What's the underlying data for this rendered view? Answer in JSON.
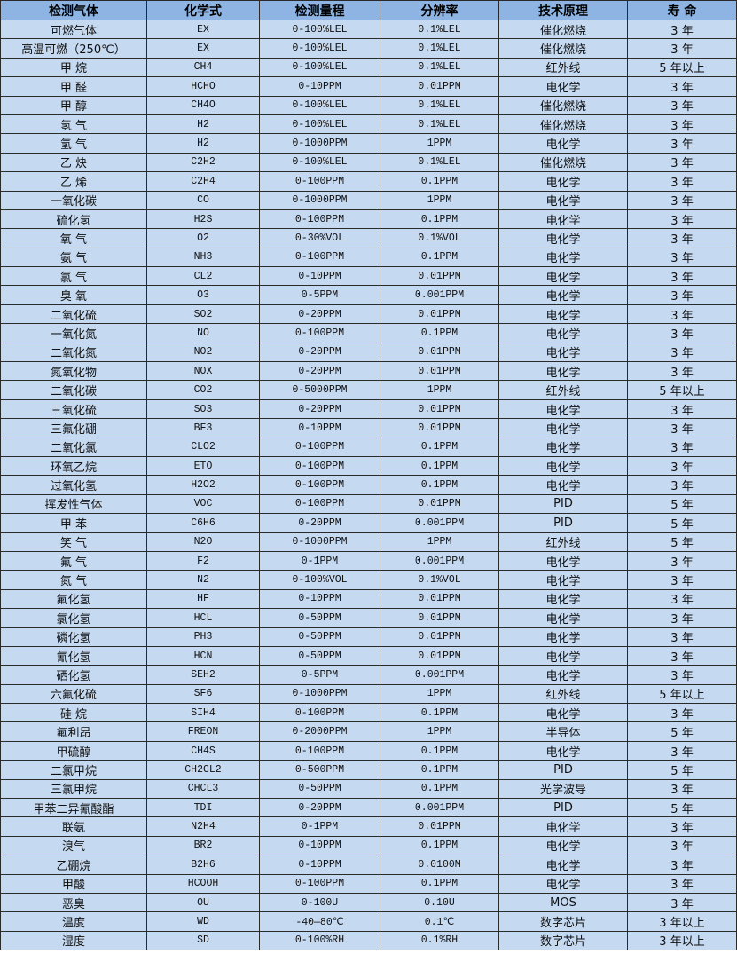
{
  "headers": [
    "检测气体",
    "化学式",
    "检测量程",
    "分辨率",
    "技术原理",
    "寿 命"
  ],
  "rows": [
    [
      "可燃气体",
      "EX",
      "0-100%LEL",
      "0.1%LEL",
      "催化燃烧",
      "3 年"
    ],
    [
      "高温可燃（250℃）",
      "EX",
      "0-100%LEL",
      "0.1%LEL",
      "催化燃烧",
      "3 年"
    ],
    [
      "甲 烷",
      "CH4",
      "0-100%LEL",
      "0.1%LEL",
      "红外线",
      "5 年以上"
    ],
    [
      "甲 醛",
      "HCHO",
      "0-10PPM",
      "0.01PPM",
      "电化学",
      "3 年"
    ],
    [
      "甲 醇",
      "CH4O",
      "0-100%LEL",
      "0.1%LEL",
      "催化燃烧",
      "3 年"
    ],
    [
      "氢 气",
      "H2",
      "0-100%LEL",
      "0.1%LEL",
      "催化燃烧",
      "3 年"
    ],
    [
      "氢 气",
      "H2",
      "0-1000PPM",
      "1PPM",
      "电化学",
      "3 年"
    ],
    [
      "乙 炔",
      "C2H2",
      "0-100%LEL",
      "0.1%LEL",
      "催化燃烧",
      "3 年"
    ],
    [
      "乙 烯",
      "C2H4",
      "0-100PPM",
      "0.1PPM",
      "电化学",
      "3 年"
    ],
    [
      "一氧化碳",
      "CO",
      "0-1000PPM",
      "1PPM",
      "电化学",
      "3 年"
    ],
    [
      "硫化氢",
      "H2S",
      "0-100PPM",
      "0.1PPM",
      "电化学",
      "3 年"
    ],
    [
      "氧 气",
      "O2",
      "0-30%VOL",
      "0.1%VOL",
      "电化学",
      "3 年"
    ],
    [
      "氨 气",
      "NH3",
      "0-100PPM",
      "0.1PPM",
      "电化学",
      "3 年"
    ],
    [
      "氯 气",
      "CL2",
      "0-10PPM",
      "0.01PPM",
      "电化学",
      "3 年"
    ],
    [
      "臭 氧",
      "O3",
      "0-5PPM",
      "0.001PPM",
      "电化学",
      "3 年"
    ],
    [
      "二氧化硫",
      "SO2",
      "0-20PPM",
      "0.01PPM",
      "电化学",
      "3 年"
    ],
    [
      "一氧化氮",
      "NO",
      "0-100PPM",
      "0.1PPM",
      "电化学",
      "3 年"
    ],
    [
      "二氧化氮",
      "NO2",
      "0-20PPM",
      "0.01PPM",
      "电化学",
      "3 年"
    ],
    [
      "氮氧化物",
      "NOX",
      "0-20PPM",
      "0.01PPM",
      "电化学",
      "3 年"
    ],
    [
      "二氧化碳",
      "CO2",
      "0-5000PPM",
      "1PPM",
      "红外线",
      "5 年以上"
    ],
    [
      "三氧化硫",
      "SO3",
      "0-20PPM",
      "0.01PPM",
      "电化学",
      "3 年"
    ],
    [
      "三氟化硼",
      "BF3",
      "0-10PPM",
      "0.01PPM",
      "电化学",
      "3 年"
    ],
    [
      "二氧化氯",
      "CLO2",
      "0-100PPM",
      "0.1PPM",
      "电化学",
      "3 年"
    ],
    [
      "环氧乙烷",
      "ETO",
      "0-100PPM",
      "0.1PPM",
      "电化学",
      "3 年"
    ],
    [
      "过氧化氢",
      "H2O2",
      "0-100PPM",
      "0.1PPM",
      "电化学",
      "3 年"
    ],
    [
      "挥发性气体",
      "VOC",
      "0-100PPM",
      "0.01PPM",
      "PID",
      "5 年"
    ],
    [
      "甲 苯",
      "C6H6",
      "0-20PPM",
      "0.001PPM",
      "PID",
      "5 年"
    ],
    [
      "笑 气",
      "N2O",
      "0-1000PPM",
      "1PPM",
      "红外线",
      "5 年"
    ],
    [
      "氟 气",
      "F2",
      "0-1PPM",
      "0.001PPM",
      "电化学",
      "3 年"
    ],
    [
      "氮 气",
      "N2",
      "0-100%VOL",
      "0.1%VOL",
      "电化学",
      "3 年"
    ],
    [
      "氟化氢",
      "HF",
      "0-10PPM",
      "0.01PPM",
      "电化学",
      "3 年"
    ],
    [
      "氯化氢",
      "HCL",
      "0-50PPM",
      "0.01PPM",
      "电化学",
      "3 年"
    ],
    [
      "磷化氢",
      "PH3",
      "0-50PPM",
      "0.01PPM",
      "电化学",
      "3 年"
    ],
    [
      "氰化氢",
      "HCN",
      "0-50PPM",
      "0.01PPM",
      "电化学",
      "3 年"
    ],
    [
      "硒化氢",
      "SEH2",
      "0-5PPM",
      "0.001PPM",
      "电化学",
      "3 年"
    ],
    [
      "六氟化硫",
      "SF6",
      "0-1000PPM",
      "1PPM",
      "红外线",
      "5 年以上"
    ],
    [
      "硅 烷",
      "SIH4",
      "0-100PPM",
      "0.1PPM",
      "电化学",
      "3 年"
    ],
    [
      "氟利昂",
      "FREON",
      "0-2000PPM",
      "1PPM",
      "半导体",
      "5 年"
    ],
    [
      "甲硫醇",
      "CH4S",
      "0-100PPM",
      "0.1PPM",
      "电化学",
      "3 年"
    ],
    [
      "二氯甲烷",
      "CH2CL2",
      "0-500PPM",
      "0.1PPM",
      "PID",
      "5 年"
    ],
    [
      "三氯甲烷",
      "CHCL3",
      "0-50PPM",
      "0.1PPM",
      "光学波导",
      "3 年"
    ],
    [
      "甲苯二异氰酸酯",
      "TDI",
      "0-20PPM",
      "0.001PPM",
      "PID",
      "5 年"
    ],
    [
      "联氨",
      "N2H4",
      "0-1PPM",
      "0.01PPM",
      "电化学",
      "3 年"
    ],
    [
      "溴气",
      "BR2",
      "0-10PPM",
      "0.1PPM",
      "电化学",
      "3 年"
    ],
    [
      "乙硼烷",
      "B2H6",
      "0-10PPM",
      "0.0100M",
      "电化学",
      "3 年"
    ],
    [
      "甲酸",
      "HCOOH",
      "0-100PPM",
      "0.1PPM",
      "电化学",
      "3 年"
    ],
    [
      "恶臭",
      "OU",
      "0-100U",
      "0.10U",
      "MOS",
      "3 年"
    ],
    [
      "温度",
      "WD",
      "-40—80℃",
      "0.1℃",
      "数字芯片",
      "3 年以上"
    ],
    [
      "湿度",
      "SD",
      "0-100%RH",
      "0.1%RH",
      "数字芯片",
      "3 年以上"
    ]
  ],
  "colors": {
    "header_bg": "#8db4e2",
    "row_bg": "#c5d9f1",
    "border": "#2a2a2a"
  }
}
